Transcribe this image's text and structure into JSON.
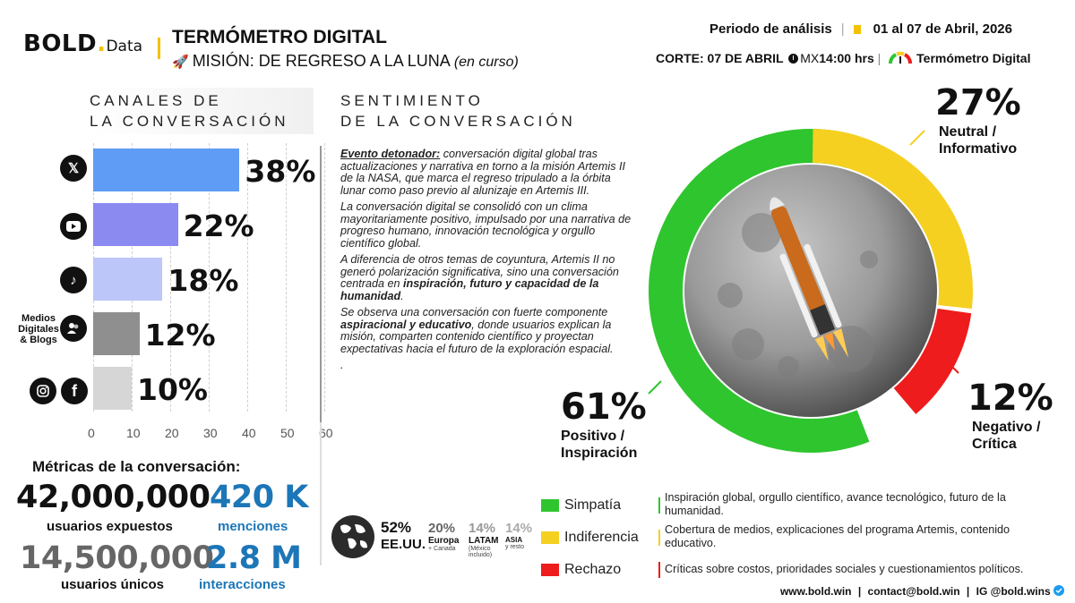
{
  "header": {
    "logo_main": "BOLD",
    "logo_dot": ".",
    "logo_sub": "Data",
    "title": "TERMÓMETRO DIGITAL",
    "subtitle": "MISIÓN: DE REGRESO A LA LUNA",
    "subtitle_status": "(en curso)",
    "period_label": "Periodo de análisis",
    "period_value": "01 al 07 de Abril, 2026",
    "corte_label": "CORTE: 07 DE ABRIL",
    "corte_zone": "MX",
    "corte_time": "14:00 hrs",
    "brand": "Termómetro Digital"
  },
  "sections": {
    "channels_title_1": "CANALES DE",
    "channels_title_2": "LA CONVERSACIÓN",
    "sentiment_title_1": "SENTIMIENTO",
    "sentiment_title_2": "DE LA CONVERSACIÓN"
  },
  "channels": {
    "icons": [
      "x-icon",
      "youtube-icon",
      "tiktok-icon",
      "blogs-icon",
      "instagram-facebook-icon"
    ],
    "media_label_1": "Medios",
    "media_label_2": "Digitales",
    "media_label_3": "& Blogs"
  },
  "body": {
    "p1_strong": "Evento detonador:",
    "p1": " conversación digital global tras actualizaciones y narrativa en torno a la misión Artemis II de la NASA, que marca el regreso tripulado a la órbita lunar como paso previo al alunizaje en Artemis III.",
    "p2": "La conversación digital se consolidó con un clima mayoritariamente positivo, impulsado por una narrativa de progreso humano, innovación tecnológica y orgullo científico global.",
    "p3": "A diferencia de otros temas de coyuntura, Artemis II no generó polarización significativa, sino una conversación centrada en ",
    "p3_strong": "inspiración, futuro y capacidad de la humanidad",
    "p3_end": ".",
    "p4": "Se observa una conversación con fuerte componente ",
    "p4_strong": "aspiracional y educativo",
    "p4_end": ", donde usuarios explican la misión, comparten contenido científico y proyectan expectativas hacia el futuro de la exploración espacial.",
    "p5": "."
  },
  "sentiment_labels": {
    "neutral_pct": "27%",
    "neutral_1": "Neutral /",
    "neutral_2": "Informativo",
    "neg_pct": "12%",
    "neg_1": "Negativo /",
    "neg_2": "Crítica",
    "pos_pct": "61%",
    "pos_1": "Positivo /",
    "pos_2": "Inspiración"
  },
  "metrics": {
    "title": "Métricas de la conversación:",
    "exposed_value": "42,000,000",
    "exposed_label": "usuarios expuestos",
    "mentions_value": "420 K",
    "mentions_label": "menciones",
    "unique_value": "14,500,000",
    "unique_label": "usuarios únicos",
    "interactions_value": "2.8 M",
    "interactions_label": "interacciones"
  },
  "geo": [
    {
      "pct": "52%",
      "label": "EE.UU.",
      "sub": ""
    },
    {
      "pct": "20%",
      "label": "Europa",
      "sub": "+ Canada"
    },
    {
      "pct": "14%",
      "label": "LATAM",
      "sub": "(México incluido)"
    },
    {
      "pct": "14%",
      "label": "ASIA",
      "sub": "y resto"
    }
  ],
  "legend": [
    {
      "name": "Simpatía",
      "color": "#2fc52f",
      "desc": "Inspiración global, orgullo científico, avance tecnológico, futuro de la humanidad."
    },
    {
      "name": "Indiferencia",
      "color": "#f5d020",
      "desc": "Cobertura de medios, explicaciones del programa Artemis, contenido educativo."
    },
    {
      "name": "Rechazo",
      "color": "#ee1c1c",
      "desc": "Críticas sobre costos, prioridades sociales y cuestionamientos políticos."
    }
  ],
  "footer": {
    "web": "www.bold.win",
    "sep": "|",
    "email": "contact@bold.win",
    "ig": "IG @bold.wins"
  },
  "chart_data": [
    {
      "type": "bar",
      "orientation": "horizontal",
      "categories": [
        "X",
        "YouTube",
        "TikTok",
        "Medios Digitales & Blogs",
        "Instagram / Facebook"
      ],
      "values": [
        38,
        22,
        18,
        12,
        10
      ],
      "data_labels": [
        "38%",
        "22%",
        "18%",
        "12%",
        "10%"
      ],
      "colors": [
        "#5f9cf5",
        "#8a8af0",
        "#bcc6f8",
        "#8f8f8f",
        "#d6d6d6"
      ],
      "xticks": [
        0,
        10,
        20,
        30,
        40,
        50,
        60
      ],
      "xlim": [
        0,
        60
      ],
      "grid": true
    },
    {
      "type": "pie",
      "donut": true,
      "categories": [
        "Positivo / Inspiración",
        "Neutral / Informativo",
        "Negativo / Crítica"
      ],
      "values": [
        61,
        27,
        12
      ],
      "colors": [
        "#2fc52f",
        "#f5d020",
        "#ee1c1c"
      ]
    }
  ]
}
